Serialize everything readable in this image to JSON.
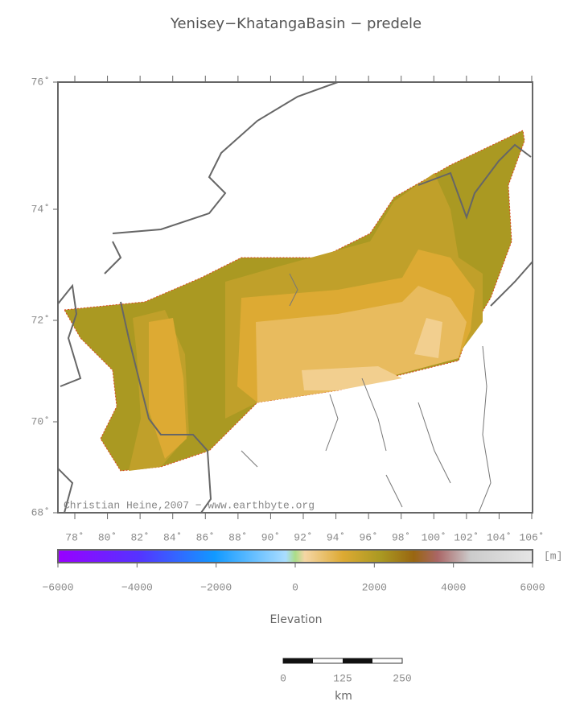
{
  "title": "Yenisey−KhatangaBasin − predele",
  "map": {
    "lat_labels": [
      "76˚",
      "74˚",
      "72˚",
      "70˚",
      "68˚"
    ],
    "lon_labels": [
      "78˚",
      "80˚",
      "82˚",
      "84˚",
      "86˚",
      "88˚",
      "90˚",
      "92˚",
      "94˚",
      "96˚",
      "98˚",
      "100˚",
      "102˚",
      "104˚",
      "106˚"
    ],
    "credit": "Christian Heine,2007 − www.earthbyte.org"
  },
  "colorbar": {
    "unit": "[m]",
    "ticks": [
      "−6000",
      "−4000",
      "−2000",
      "0",
      "2000",
      "4000",
      "6000"
    ],
    "label": "Elevation"
  },
  "scale_bar": {
    "ticks": [
      "0",
      "125",
      "250"
    ],
    "unit": "km"
  }
}
